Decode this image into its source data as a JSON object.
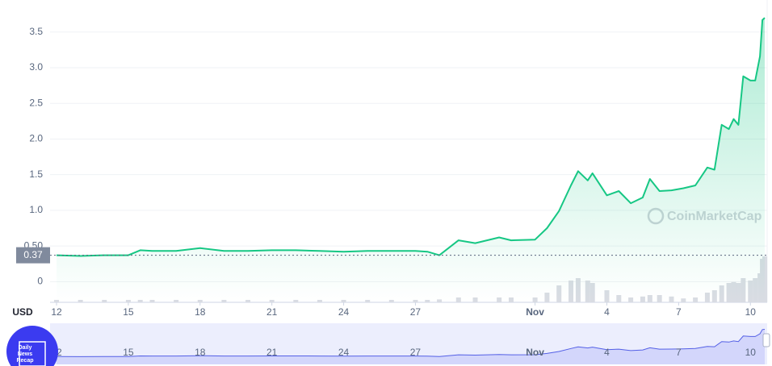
{
  "chart_data": {
    "type": "line",
    "x": [
      0,
      1,
      2,
      3,
      3.5,
      4,
      5,
      6,
      7,
      8,
      9,
      10,
      11,
      12,
      13,
      14,
      15,
      15.5,
      16,
      16.8,
      17.5,
      18.5,
      19,
      20,
      20.5,
      21,
      21.5,
      21.8,
      22.2,
      22.4,
      23,
      23.5,
      24,
      24.5,
      24.8,
      25.2,
      25.7,
      26.2,
      26.7,
      27.2,
      27.5,
      27.8,
      28.1,
      28.3,
      28.5,
      28.7,
      29,
      29.2,
      29.4,
      29.5,
      29.6
    ],
    "values": [
      0.37,
      0.36,
      0.37,
      0.37,
      0.44,
      0.43,
      0.43,
      0.47,
      0.43,
      0.43,
      0.44,
      0.44,
      0.43,
      0.42,
      0.43,
      0.43,
      0.43,
      0.42,
      0.37,
      0.58,
      0.54,
      0.62,
      0.58,
      0.59,
      0.75,
      0.99,
      1.35,
      1.55,
      1.42,
      1.52,
      1.21,
      1.27,
      1.1,
      1.18,
      1.44,
      1.27,
      1.28,
      1.31,
      1.35,
      1.6,
      1.57,
      2.2,
      2.14,
      2.28,
      2.2,
      2.88,
      2.82,
      2.82,
      3.16,
      3.67,
      3.7
    ],
    "volume": [
      5,
      5,
      5,
      5,
      5,
      5,
      5,
      5,
      5,
      5,
      5,
      5,
      5,
      5,
      5,
      5,
      5,
      5,
      6,
      10,
      10,
      10,
      10,
      10,
      20,
      35,
      45,
      50,
      45,
      40,
      25,
      15,
      10,
      12,
      15,
      15,
      12,
      8,
      10,
      20,
      25,
      35,
      40,
      42,
      40,
      50,
      45,
      50,
      60,
      90,
      95
    ],
    "color": "#16c784",
    "xlim": [
      -0.27,
      29.7
    ],
    "ylim": [
      -0.29,
      3.95
    ],
    "xticks": [
      {
        "value": 0,
        "label": "12"
      },
      {
        "value": 3,
        "label": "15"
      },
      {
        "value": 6,
        "label": "18"
      },
      {
        "value": 9,
        "label": "21"
      },
      {
        "value": 12,
        "label": "24"
      },
      {
        "value": 15,
        "label": "27"
      },
      {
        "value": 20,
        "label": "Nov"
      },
      {
        "value": 23,
        "label": "4"
      },
      {
        "value": 26,
        "label": "7"
      },
      {
        "value": 29,
        "label": "10"
      }
    ],
    "yticks": [
      0,
      {
        "value": 0.5,
        "label": "0.50"
      },
      {
        "value": 1,
        "label": "1.0"
      },
      {
        "value": 1.5,
        "label": "1.5"
      },
      {
        "value": 2,
        "label": "2.0"
      },
      {
        "value": 2.5,
        "label": "2.5"
      },
      {
        "value": 3,
        "label": "3.0"
      },
      {
        "value": 3.5,
        "label": "3.5"
      }
    ],
    "grid": true,
    "last_price": 0.37,
    "currency": "USD",
    "watermark": "CoinMarketCap"
  },
  "badge": {
    "lines": [
      "Daily",
      "News",
      "Recap"
    ]
  }
}
